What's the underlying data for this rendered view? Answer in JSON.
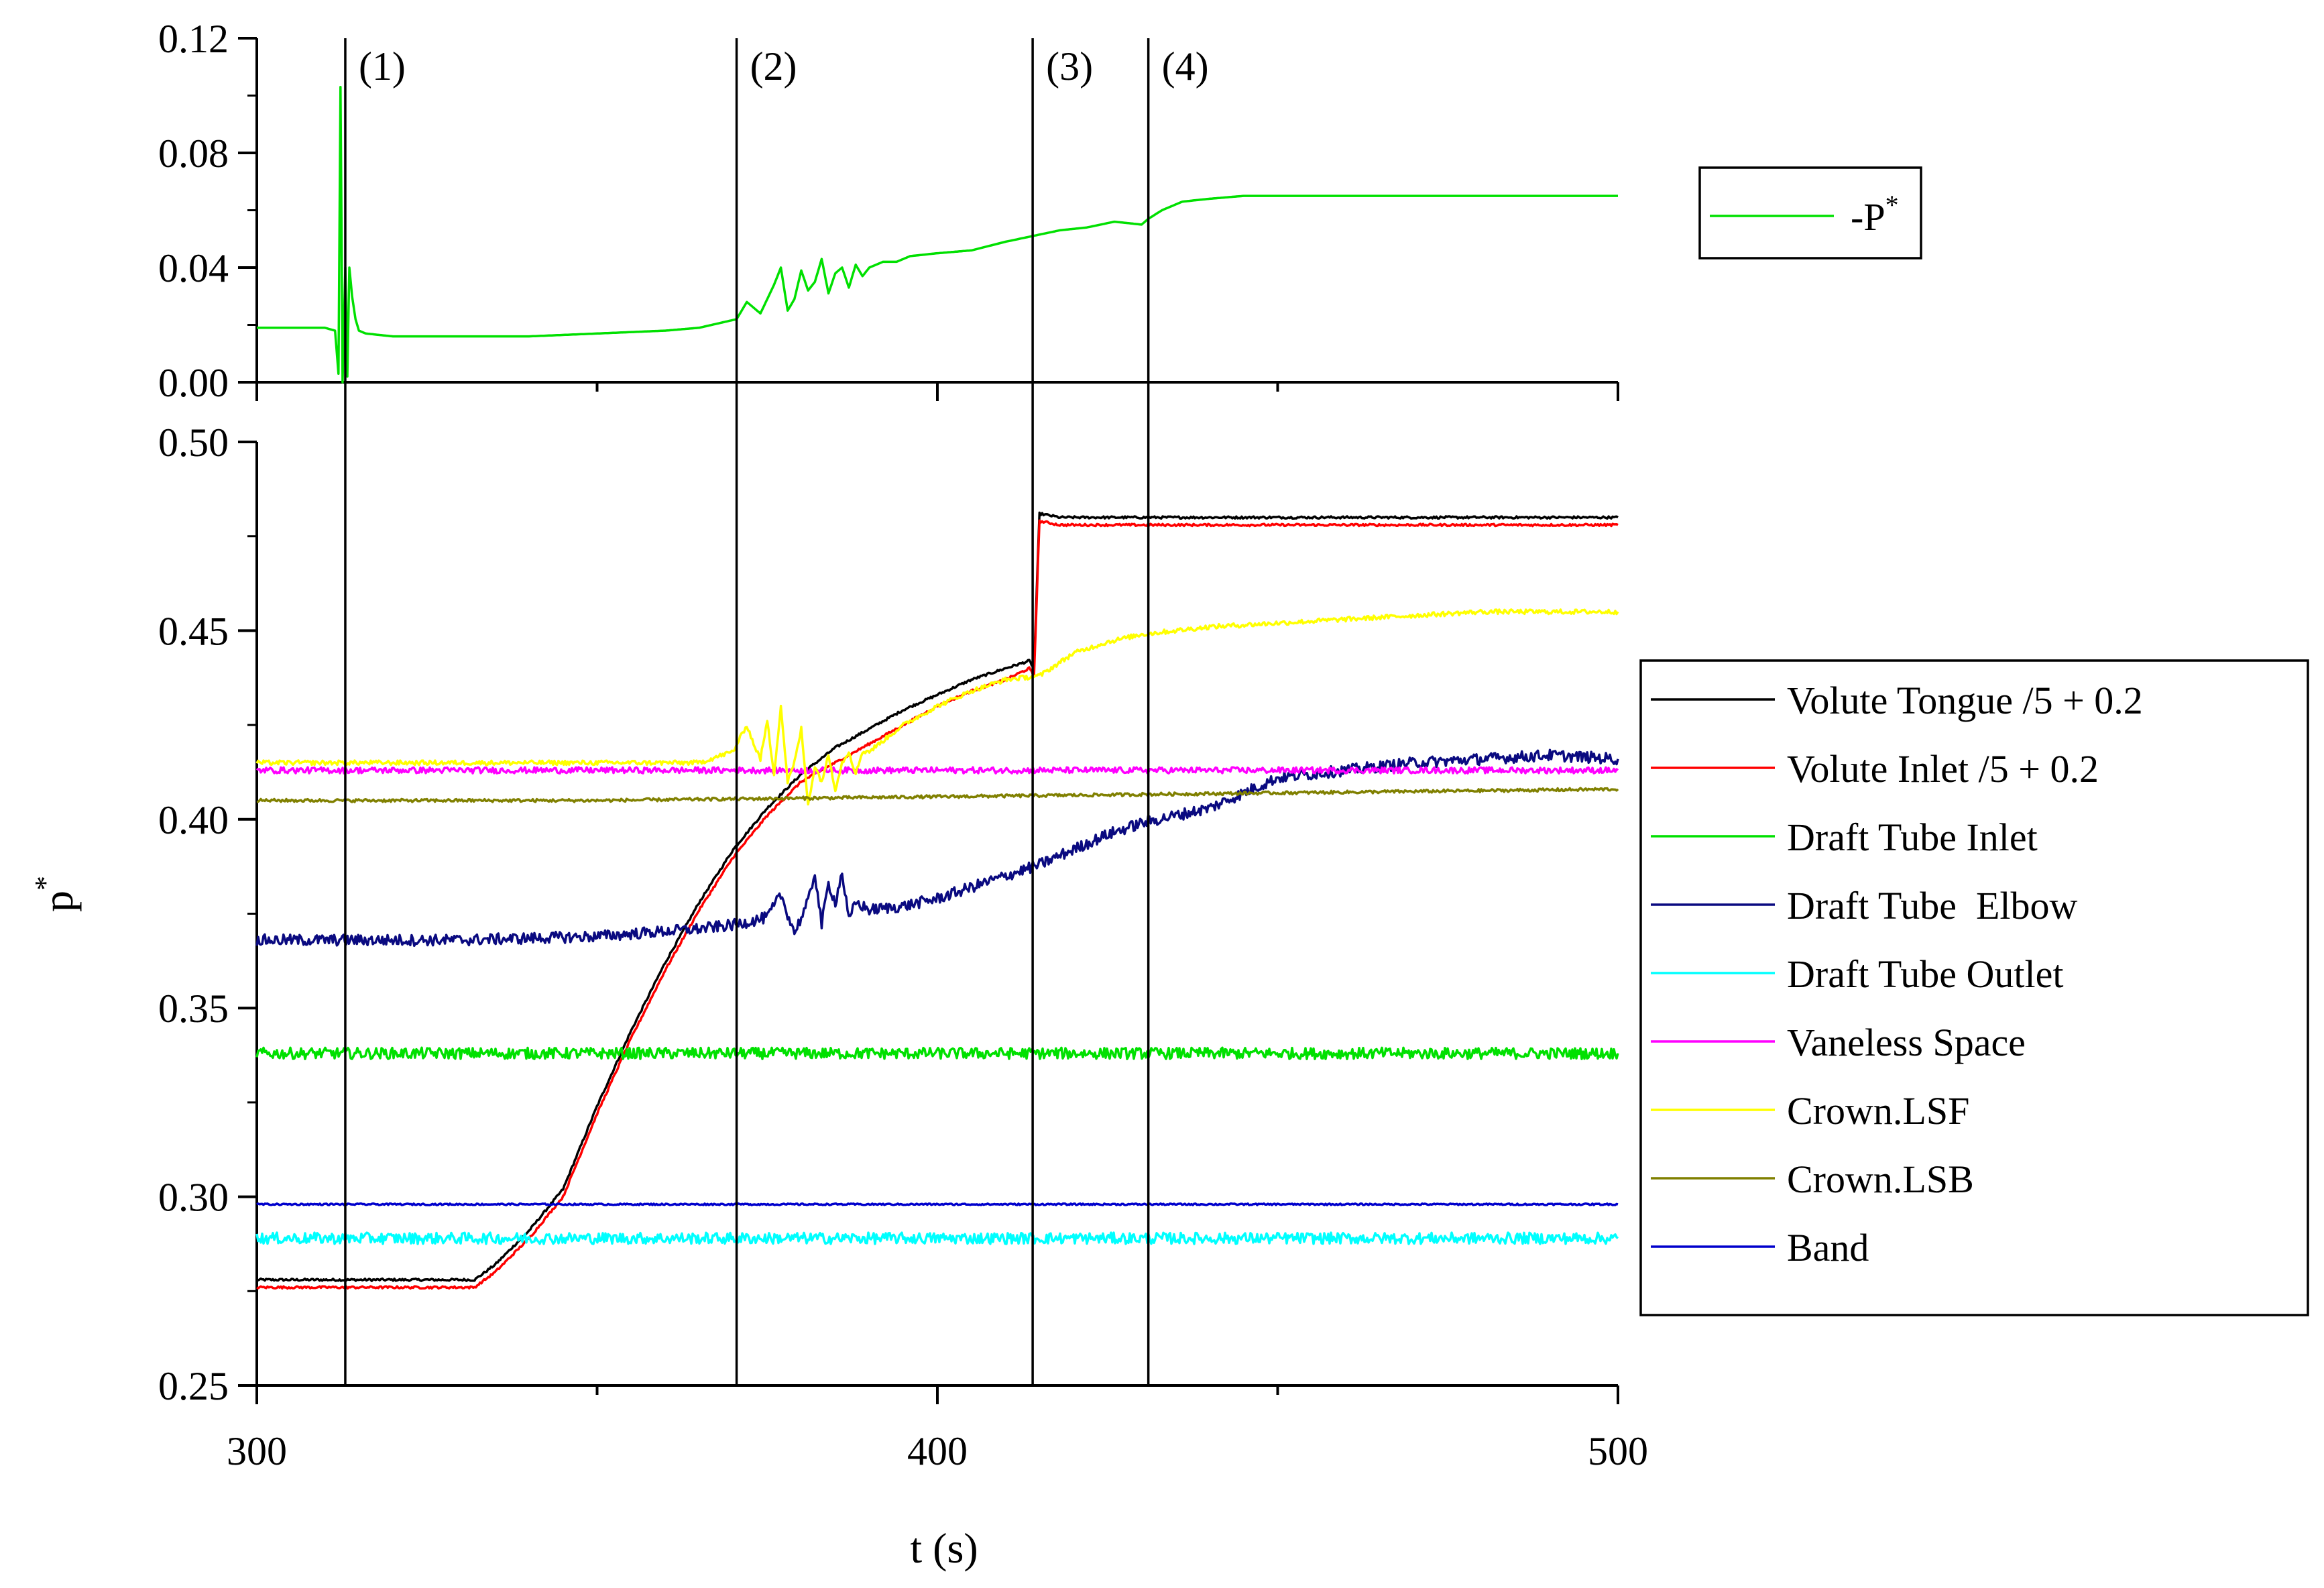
{
  "chart_data": [
    {
      "type": "line",
      "panel": "top",
      "ylim": [
        0.0,
        0.12
      ],
      "y_ticks": [
        "0.00",
        "0.04",
        "0.08",
        "0.12"
      ],
      "xlim": [
        300,
        500
      ],
      "legend": {
        "position": "right",
        "label_base": "-P",
        "label_sup": "*"
      },
      "event_markers": [
        {
          "x": 313,
          "label": "(1)"
        },
        {
          "x": 370.5,
          "label": "(2)"
        },
        {
          "x": 414,
          "label": "(3)"
        },
        {
          "x": 431,
          "label": "(4)"
        }
      ],
      "series": [
        {
          "name": "-P*",
          "color": "#00e000",
          "x": [
            300,
            305,
            310,
            311.5,
            312,
            312.3,
            312.6,
            313,
            313.3,
            313.6,
            314,
            314.5,
            315,
            316,
            320,
            330,
            340,
            350,
            360,
            365,
            370.5,
            372,
            374,
            376,
            377,
            378,
            379,
            380,
            381,
            382,
            383,
            384,
            385,
            386,
            387,
            388,
            389,
            390,
            392,
            394,
            396,
            400,
            405,
            410,
            414,
            418,
            422,
            426,
            430,
            431,
            433,
            436,
            440,
            445,
            450,
            460,
            470,
            480,
            490,
            500
          ],
          "y": [
            0.019,
            0.019,
            0.019,
            0.018,
            0.003,
            0.103,
            0.0,
            0.04,
            0.002,
            0.04,
            0.03,
            0.022,
            0.018,
            0.017,
            0.016,
            0.016,
            0.016,
            0.017,
            0.018,
            0.019,
            0.022,
            0.028,
            0.024,
            0.034,
            0.04,
            0.025,
            0.029,
            0.039,
            0.032,
            0.035,
            0.043,
            0.031,
            0.038,
            0.04,
            0.033,
            0.041,
            0.037,
            0.04,
            0.042,
            0.042,
            0.044,
            0.045,
            0.046,
            0.049,
            0.051,
            0.053,
            0.054,
            0.056,
            0.055,
            0.057,
            0.06,
            0.063,
            0.064,
            0.065,
            0.065,
            0.065,
            0.065,
            0.065,
            0.065,
            0.065
          ]
        }
      ]
    },
    {
      "type": "line",
      "panel": "bottom",
      "ylabel": "p",
      "ylabel_sup": "*",
      "xlabel": "t (s)",
      "xlim": [
        300,
        500
      ],
      "x_ticks": [
        "300",
        "400",
        "500"
      ],
      "ylim": [
        0.25,
        0.5
      ],
      "y_ticks": [
        "0.25",
        "0.30",
        "0.35",
        "0.40",
        "0.45",
        "0.50"
      ],
      "legend": {
        "position": "right"
      },
      "series": [
        {
          "name": "Volute Tongue /5 + 0.2",
          "color": "#000000",
          "x": [
            300,
            332,
            335,
            340,
            345,
            350,
            355,
            360,
            365,
            370,
            375,
            380,
            385,
            390,
            395,
            400,
            405,
            410,
            413.5,
            414.2,
            415,
            418,
            425,
            440,
            460,
            480,
            500
          ],
          "y": [
            0.278,
            0.278,
            0.282,
            0.291,
            0.302,
            0.324,
            0.344,
            0.362,
            0.378,
            0.392,
            0.403,
            0.412,
            0.419,
            0.424,
            0.429,
            0.433,
            0.437,
            0.44,
            0.442,
            0.44,
            0.481,
            0.48,
            0.48,
            0.48,
            0.48,
            0.48,
            0.48
          ],
          "noise": 0.0003
        },
        {
          "name": "Volute Inlet /5 + 0.2",
          "color": "#ff0000",
          "x": [
            300,
            332,
            335,
            340,
            345,
            350,
            355,
            360,
            365,
            370,
            375,
            380,
            385,
            390,
            395,
            400,
            405,
            410,
            413.5,
            414.2,
            415,
            418,
            425,
            440,
            460,
            480,
            500
          ],
          "y": [
            0.276,
            0.276,
            0.28,
            0.289,
            0.3,
            0.322,
            0.342,
            0.36,
            0.376,
            0.39,
            0.401,
            0.41,
            0.415,
            0.42,
            0.425,
            0.43,
            0.434,
            0.437,
            0.44,
            0.438,
            0.479,
            0.478,
            0.478,
            0.478,
            0.478,
            0.478,
            0.478
          ],
          "noise": 0.0003
        },
        {
          "name": "Draft Tube Inlet",
          "color": "#00e000",
          "x": [
            300,
            500
          ],
          "y": [
            0.338,
            0.338
          ],
          "noise": 0.0015
        },
        {
          "name": "Draft Tube  Elbow",
          "color": "#0a0a80",
          "x": [
            300,
            330,
            350,
            365,
            370,
            375,
            377,
            379,
            381,
            382,
            383,
            384,
            385,
            386,
            387,
            388,
            390,
            395,
            400,
            405,
            410,
            415,
            420,
            425,
            430,
            435,
            440,
            445,
            450,
            460,
            470,
            480,
            490,
            500
          ],
          "y": [
            0.368,
            0.368,
            0.369,
            0.371,
            0.372,
            0.374,
            0.38,
            0.37,
            0.378,
            0.386,
            0.372,
            0.383,
            0.378,
            0.386,
            0.373,
            0.378,
            0.376,
            0.377,
            0.379,
            0.382,
            0.385,
            0.388,
            0.392,
            0.396,
            0.399,
            0.401,
            0.403,
            0.407,
            0.411,
            0.413,
            0.415,
            0.416,
            0.417,
            0.416
          ],
          "noise": 0.0015
        },
        {
          "name": "Draft Tube Outlet",
          "color": "#00ffff",
          "x": [
            300,
            500
          ],
          "y": [
            0.289,
            0.289
          ],
          "noise": 0.0015
        },
        {
          "name": "Vaneless Space",
          "color": "#ff00ff",
          "x": [
            300,
            500
          ],
          "y": [
            0.413,
            0.413
          ],
          "noise": 0.0008
        },
        {
          "name": "Crown.LSF",
          "color": "#ffff00",
          "x": [
            300,
            365,
            370,
            372,
            373,
            374,
            375,
            376,
            377,
            378,
            379,
            380,
            381,
            382,
            383,
            384,
            385,
            386,
            387,
            388,
            389,
            390,
            395,
            400,
            405,
            410,
            415,
            420,
            425,
            430,
            440,
            450,
            460,
            470,
            480,
            490,
            500
          ],
          "y": [
            0.415,
            0.415,
            0.418,
            0.425,
            0.42,
            0.416,
            0.426,
            0.412,
            0.43,
            0.41,
            0.415,
            0.424,
            0.404,
            0.414,
            0.41,
            0.417,
            0.408,
            0.415,
            0.418,
            0.412,
            0.418,
            0.418,
            0.425,
            0.43,
            0.434,
            0.437,
            0.438,
            0.444,
            0.447,
            0.449,
            0.451,
            0.452,
            0.453,
            0.454,
            0.455,
            0.455,
            0.455
          ],
          "noise": 0.0006
        },
        {
          "name": "Crown.LSB",
          "color": "#808000",
          "x": [
            300,
            350,
            400,
            450,
            500
          ],
          "y": [
            0.405,
            0.405,
            0.406,
            0.407,
            0.408
          ],
          "noise": 0.0004
        },
        {
          "name": "Band",
          "color": "#0000cc",
          "x": [
            300,
            500
          ],
          "y": [
            0.298,
            0.298
          ],
          "noise": 0.0002
        }
      ]
    }
  ]
}
